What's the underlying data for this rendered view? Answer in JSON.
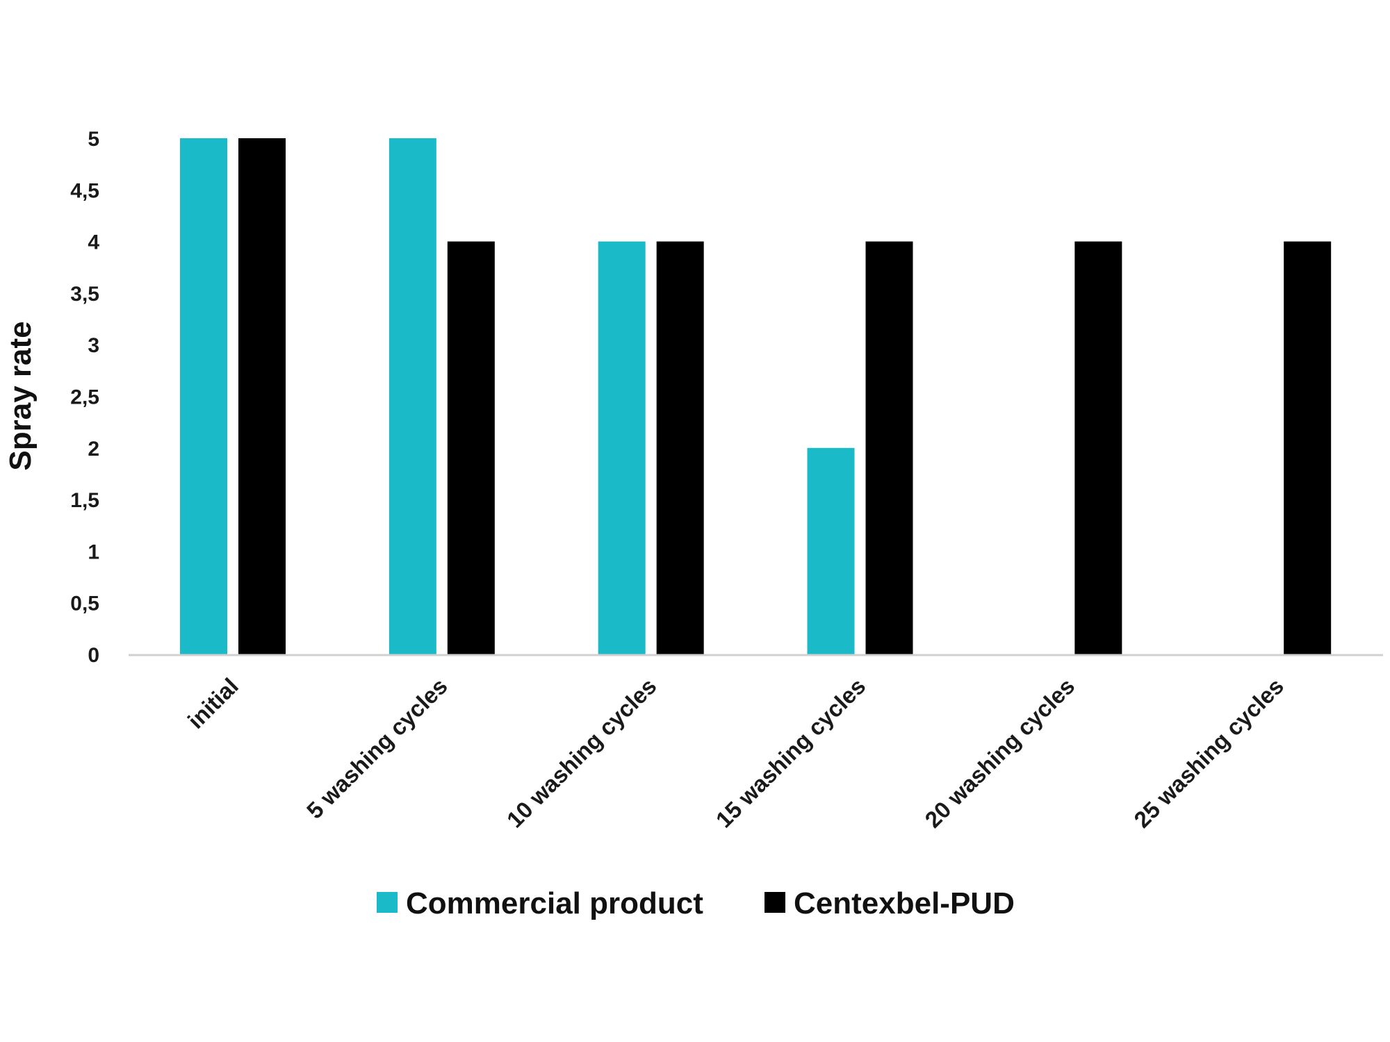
{
  "chart_data": {
    "type": "bar",
    "title": "",
    "xlabel": "",
    "ylabel": "Spray rate",
    "ylim": [
      0,
      5
    ],
    "yticks": [
      "0",
      "0,5",
      "1",
      "1,5",
      "2",
      "2,5",
      "3",
      "3,5",
      "4",
      "4,5",
      "5"
    ],
    "categories": [
      "initial",
      "5 washing cycles",
      "10 washing cycles",
      "15 washing cycles",
      "20 washing cycles",
      "25 washing cycles"
    ],
    "series": [
      {
        "name": "Commercial product",
        "color": "#1bbac8",
        "values": [
          5,
          5,
          4,
          2,
          0,
          0
        ]
      },
      {
        "name": "Centexbel-PUD",
        "color": "#000000",
        "values": [
          5,
          4,
          4,
          4,
          4,
          4
        ]
      }
    ],
    "grid": false,
    "legend": "bottom"
  }
}
